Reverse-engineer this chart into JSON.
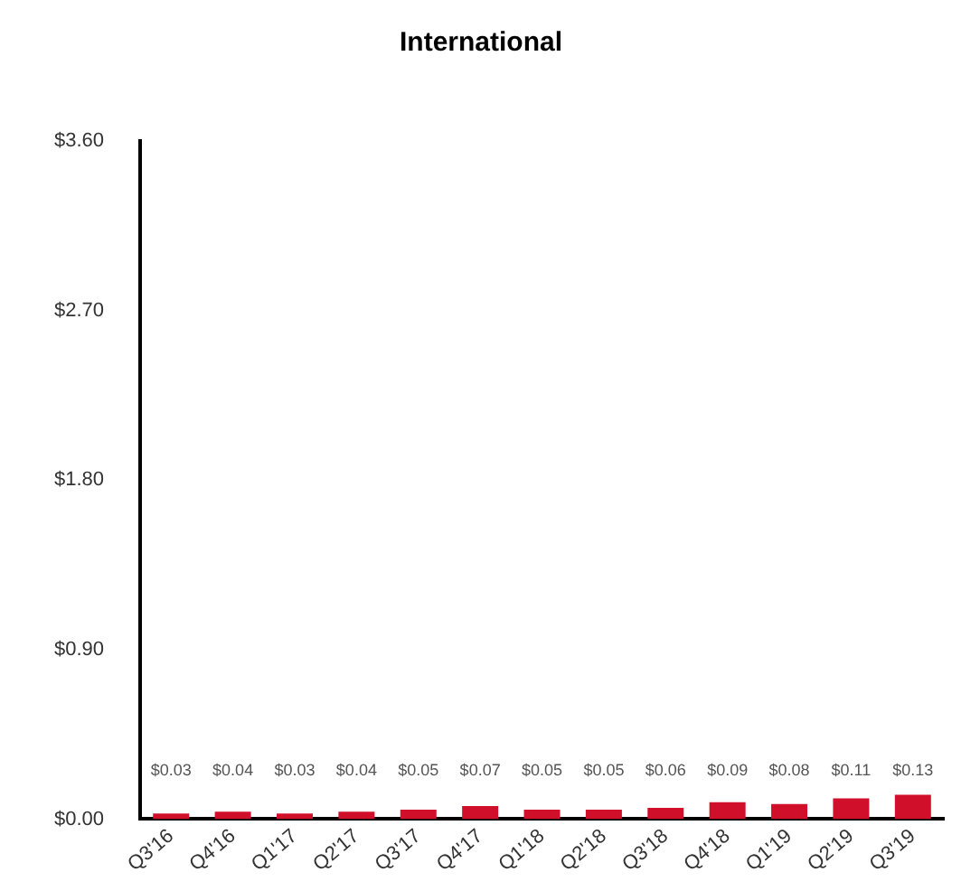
{
  "chart_data": {
    "type": "bar",
    "title": "International",
    "categories": [
      "Q3'16",
      "Q4'16",
      "Q1'17",
      "Q2'17",
      "Q3'17",
      "Q4'17",
      "Q1'18",
      "Q2'18",
      "Q3'18",
      "Q4'18",
      "Q1'19",
      "Q2'19",
      "Q3'19"
    ],
    "values": [
      0.03,
      0.04,
      0.03,
      0.04,
      0.05,
      0.07,
      0.05,
      0.05,
      0.06,
      0.09,
      0.08,
      0.11,
      0.13
    ],
    "value_labels": [
      "$0.03",
      "$0.04",
      "$0.03",
      "$0.04",
      "$0.05",
      "$0.07",
      "$0.05",
      "$0.05",
      "$0.06",
      "$0.09",
      "$0.08",
      "$0.11",
      "$0.13"
    ],
    "color": "#d0102a",
    "ylim": [
      0,
      3.6
    ],
    "yticks": [
      {
        "value": 0,
        "label": "$0.00"
      },
      {
        "value": 0.9,
        "label": "$0.90"
      },
      {
        "value": 1.8,
        "label": "$1.80"
      },
      {
        "value": 2.7,
        "label": "$2.70"
      },
      {
        "value": 3.6,
        "label": "$3.60"
      }
    ],
    "grid": false,
    "legend": false
  }
}
